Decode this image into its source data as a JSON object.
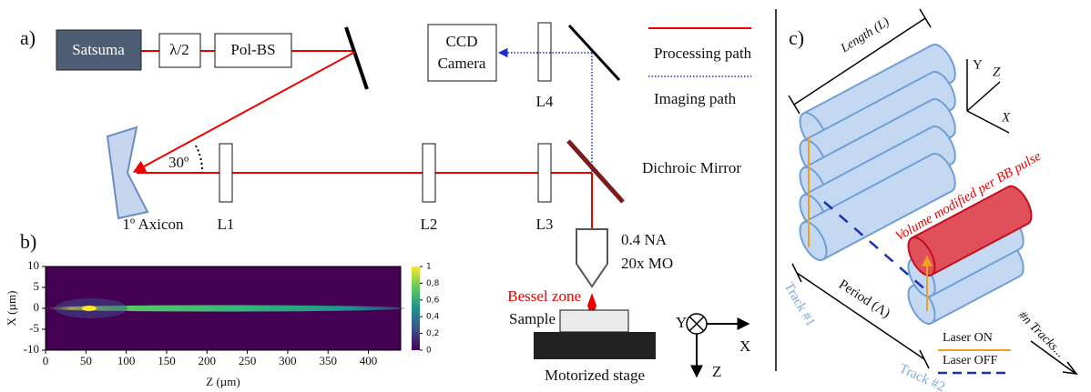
{
  "panel_a": {
    "label": "a)",
    "source": "Satsuma",
    "half_wave": "λ/2",
    "beam_splitter": "Pol-BS",
    "camera": [
      "CCD",
      "Camera"
    ],
    "legend": {
      "processing": "Processing path",
      "imaging": "Imaging path"
    },
    "angle": "30º",
    "axicon": "1º Axicon",
    "lenses": [
      "L1",
      "L2",
      "L3",
      "L4"
    ],
    "dichroic": "Dichroic Mirror",
    "objective": [
      "0.4 NA",
      "20x MO"
    ],
    "bessel_zone": "Bessel zone",
    "sample": "Sample",
    "stage": "Motorized stage",
    "axes": {
      "y": "Y",
      "x": "X",
      "z": "Z"
    }
  },
  "chart_data": {
    "type": "heatmap",
    "label": "b)",
    "xlabel": "Z (µm)",
    "ylabel": "X (µm)",
    "xlim": [
      0,
      440
    ],
    "ylim": [
      -10,
      10
    ],
    "xticks": [
      0,
      50,
      100,
      150,
      200,
      250,
      300,
      350,
      400
    ],
    "yticks": [
      -10,
      -5,
      0,
      5,
      10
    ],
    "colorbar_lim": [
      0,
      1
    ],
    "colorbar_ticks": [
      0,
      {
        "value": 0.2,
        "label": "0,2"
      },
      {
        "value": 0.4,
        "label": "0,4"
      },
      {
        "value": 0.6,
        "label": "0,6"
      },
      {
        "value": 0.8,
        "label": "0,8"
      },
      1
    ]
  },
  "panel_c": {
    "label": "c)",
    "length": "Length (L)",
    "axes": {
      "y": "Y",
      "z": "Z",
      "x": "X"
    },
    "volume": "Volume modified per BB pulse",
    "track1": "Track #1",
    "period": "Period (Λ)",
    "track2": "Track #2",
    "tracks_n": "#n Tracks...",
    "laser_on": "Laser ON",
    "laser_off": "Laser OFF"
  }
}
